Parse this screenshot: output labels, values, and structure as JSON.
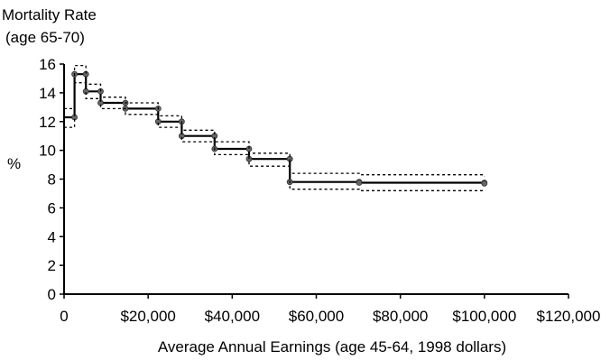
{
  "chart_data": {
    "type": "line",
    "title_lines": [
      "Mortality Rate",
      "(age 65-70)"
    ],
    "xlabel": "Average Annual Earnings (age 45-64, 1998 dollars)",
    "ylabel": "%",
    "xlim": [
      0,
      120000
    ],
    "ylim": [
      0,
      16
    ],
    "x_ticks": [
      0,
      20000,
      40000,
      60000,
      80000,
      100000,
      120000
    ],
    "x_tick_labels": [
      "0",
      "$20,000",
      "$40,000",
      "$60,000",
      "$80,000",
      "$100,000",
      "$120,000"
    ],
    "y_ticks": [
      0,
      2,
      4,
      6,
      8,
      10,
      12,
      14,
      16
    ],
    "y_tick_labels": [
      "0",
      "2",
      "4",
      "6",
      "8",
      "10",
      "12",
      "14",
      "16"
    ],
    "grid": false,
    "legend": "none",
    "series": [
      {
        "style": "step",
        "color": "#000000",
        "x": [
          0,
          2500,
          5200,
          8700,
          14600,
          22400,
          28000,
          35800,
          44000,
          53700,
          70200,
          100000
        ],
        "y": [
          12.3,
          15.3,
          14.1,
          13.3,
          12.9,
          12.0,
          11.0,
          10.1,
          9.4,
          7.8,
          7.75,
          7.7
        ]
      },
      {
        "style": "step-dashed",
        "color": "#000000",
        "x": [
          0,
          2500,
          5200,
          8700,
          14600,
          22400,
          28000,
          35800,
          44000,
          53700,
          70200,
          100000
        ],
        "y": [
          12.9,
          15.9,
          14.6,
          13.7,
          13.3,
          12.4,
          11.4,
          10.6,
          9.8,
          8.4,
          8.3,
          8.2
        ]
      },
      {
        "style": "step-dashed",
        "color": "#000000",
        "x": [
          0,
          2500,
          5200,
          8700,
          14600,
          22400,
          28000,
          35800,
          44000,
          53700,
          70200,
          100000
        ],
        "y": [
          11.6,
          14.7,
          13.6,
          12.9,
          12.5,
          11.6,
          10.6,
          9.7,
          8.9,
          7.3,
          7.2,
          7.2
        ]
      }
    ]
  }
}
